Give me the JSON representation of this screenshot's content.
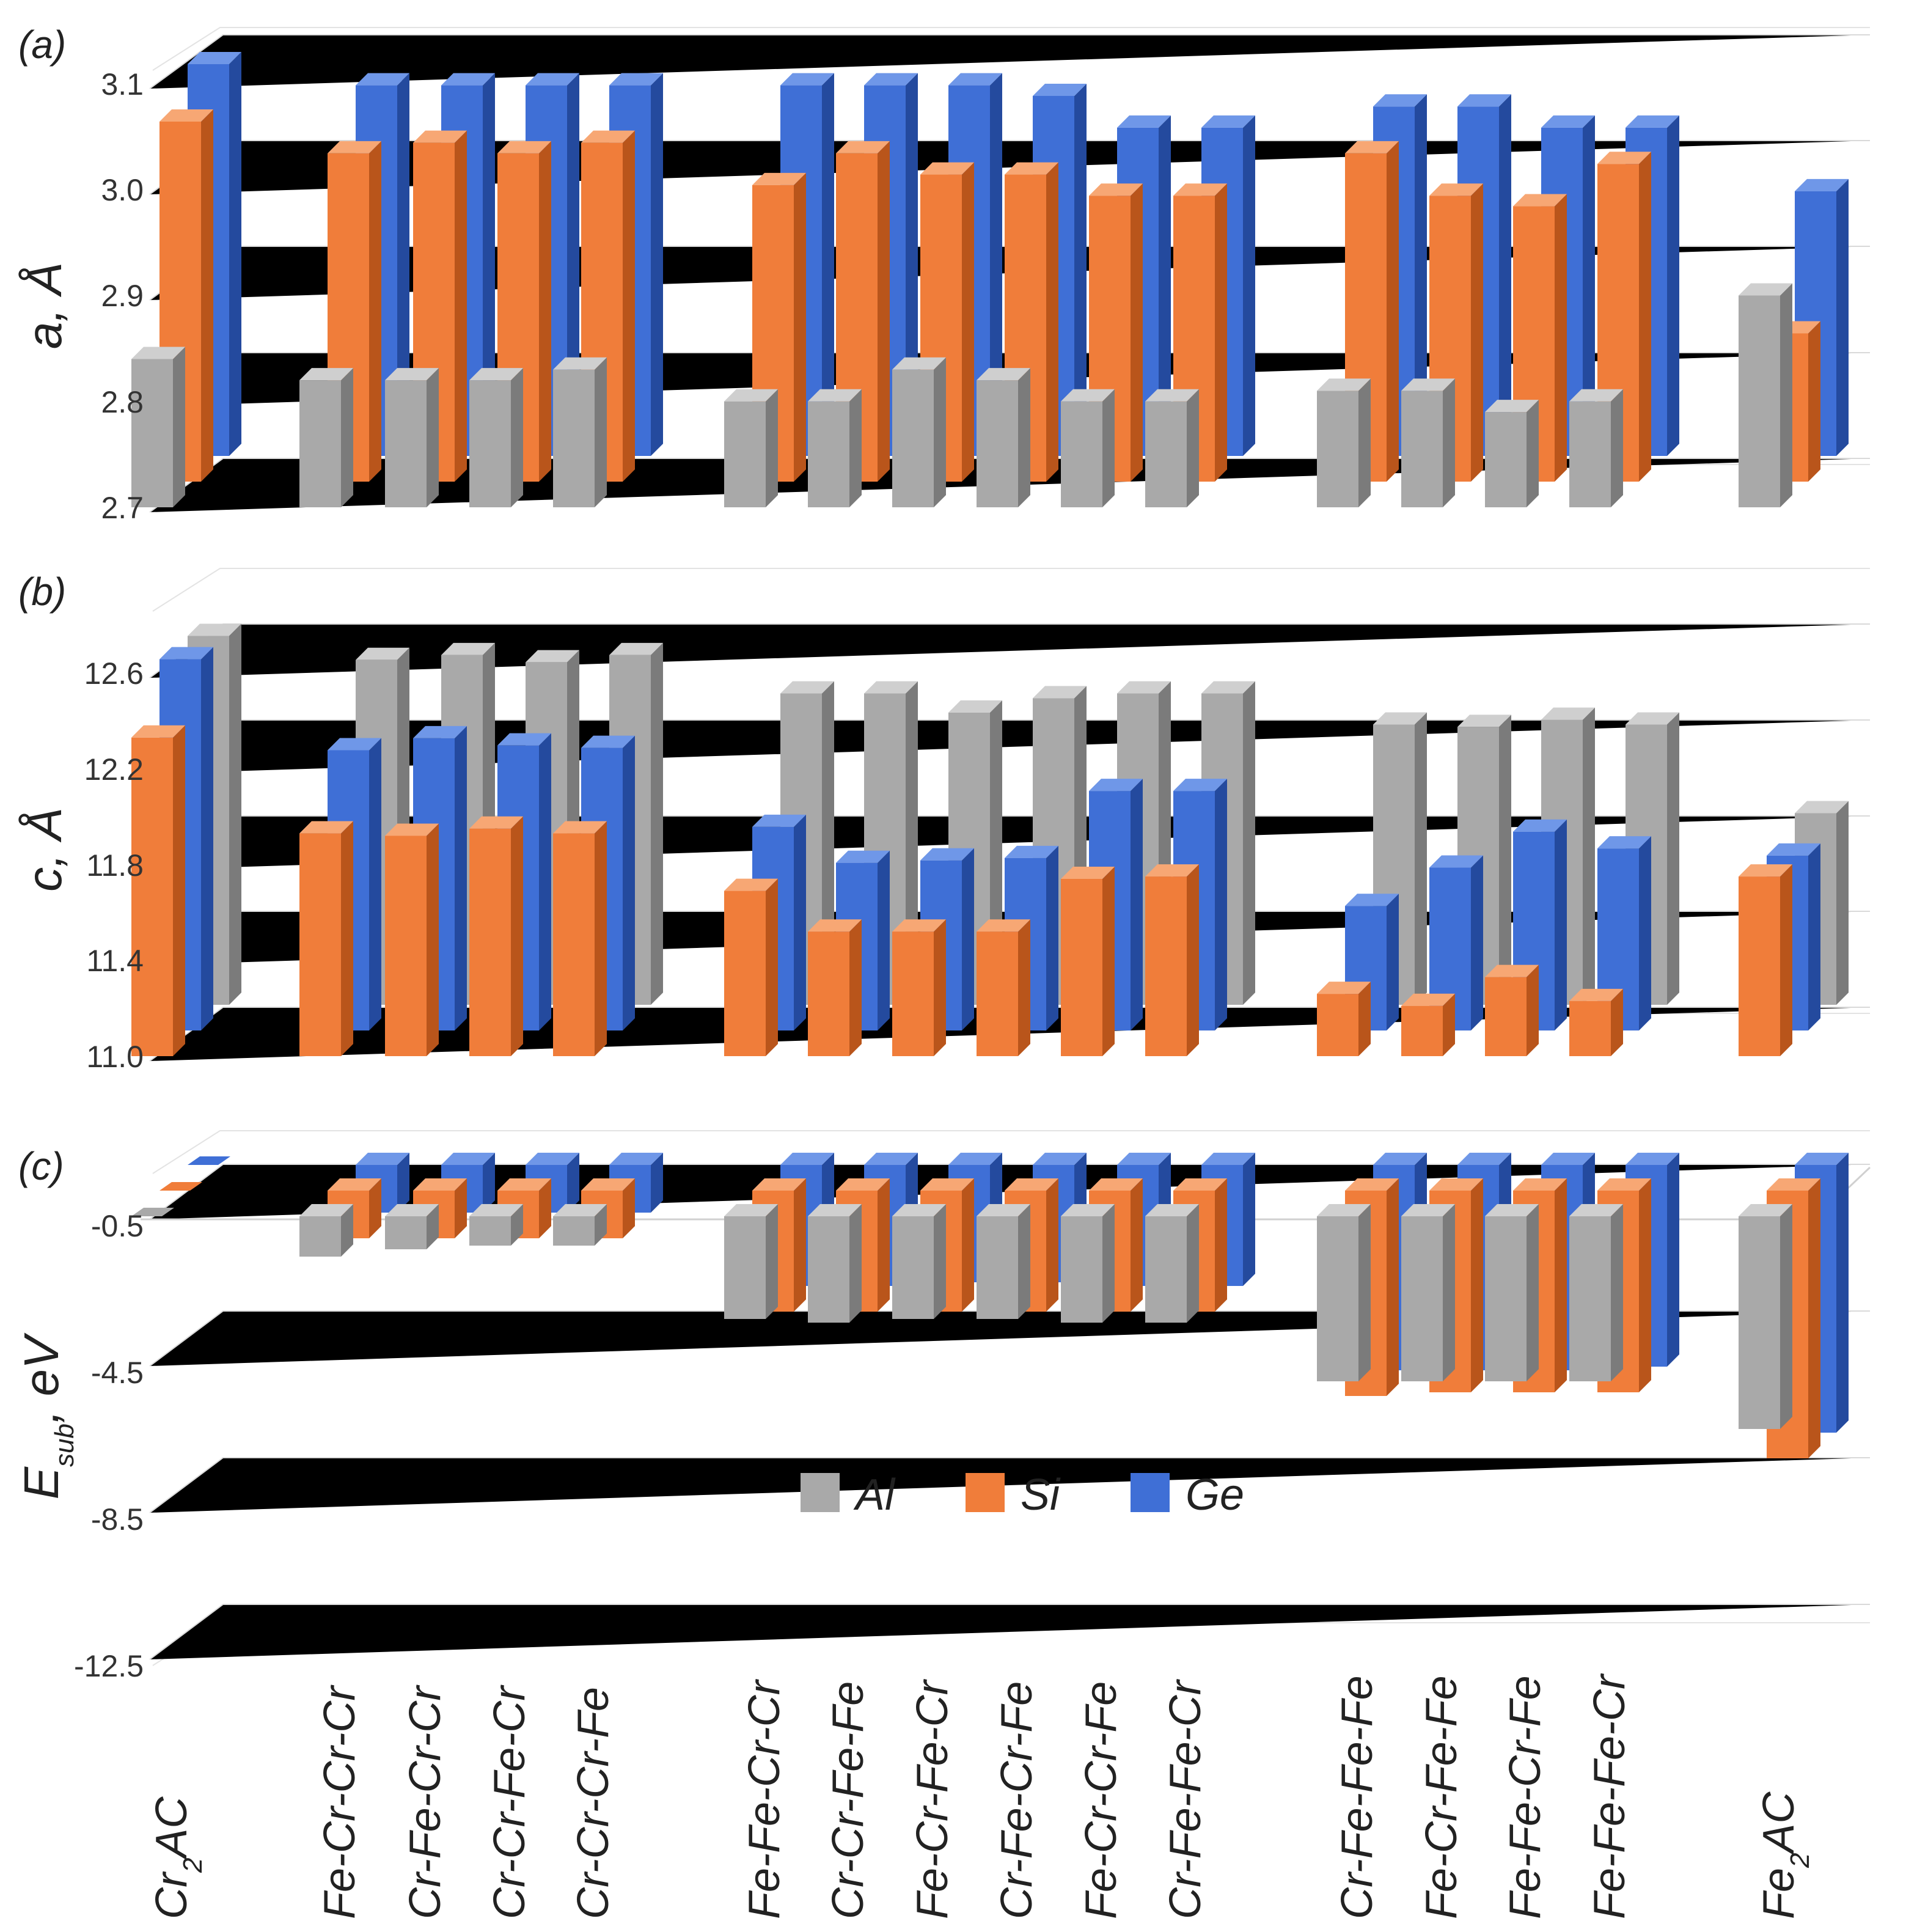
{
  "colors": {
    "Al": {
      "front": "#a9a9a9",
      "side": "#7b7b7b",
      "top": "#cfcfcf"
    },
    "Si": {
      "front": "#f07d3a",
      "side": "#b9551b",
      "top": "#f7a774"
    },
    "Ge": {
      "front": "#3f6fd6",
      "side": "#244a9e",
      "top": "#6f97e8"
    }
  },
  "chart_data": {
    "type": "bar",
    "subtype": "3d-clustered-column",
    "categories": [
      {
        "name": "Cr2AC",
        "label_main": "Cr",
        "label_sub": "2",
        "label_tail": "AC"
      },
      {
        "name": "Fe-Cr-Cr-Cr"
      },
      {
        "name": "Cr-Fe-Cr-Cr"
      },
      {
        "name": "Cr-Cr-Fe-Cr"
      },
      {
        "name": "Cr-Cr-Cr-Fe"
      },
      {
        "name": "Fe-Fe-Cr-Cr"
      },
      {
        "name": "Cr-Cr-Fe-Fe"
      },
      {
        "name": "Fe-Cr-Fe-Cr"
      },
      {
        "name": "Cr-Fe-Cr-Fe"
      },
      {
        "name": "Fe-Cr-Cr-Fe"
      },
      {
        "name": "Cr-Fe-Fe-Cr"
      },
      {
        "name": "Cr-Fe-Fe-Fe"
      },
      {
        "name": "Fe-Cr-Fe-Fe"
      },
      {
        "name": "Fe-Fe-Cr-Fe"
      },
      {
        "name": "Fe-Fe-Fe-Cr"
      },
      {
        "name": "Fe2AC",
        "label_main": "Fe",
        "label_sub": "2",
        "label_tail": "AC"
      }
    ],
    "legend": {
      "position": "inside-bottom-center",
      "entries": [
        "Al",
        "Si",
        "Ge"
      ]
    },
    "panels": [
      {
        "id": "a",
        "label": "(a)",
        "ylabel": "a, Å",
        "ylim": [
          2.7,
          3.1
        ],
        "yticks": [
          "2.7",
          "2.8",
          "2.9",
          "3.0",
          "3.1"
        ],
        "series_depth_order": [
          "Al",
          "Si",
          "Ge"
        ],
        "series": [
          {
            "name": "Al",
            "values": [
              2.84,
              2.82,
              2.82,
              2.82,
              2.83,
              2.8,
              2.8,
              2.83,
              2.82,
              2.8,
              2.8,
              2.81,
              2.81,
              2.79,
              2.8,
              2.9
            ]
          },
          {
            "name": "Si",
            "values": [
              3.04,
              3.01,
              3.02,
              3.01,
              3.02,
              2.98,
              3.01,
              2.99,
              2.99,
              2.97,
              2.97,
              3.01,
              2.97,
              2.96,
              3.0,
              2.84
            ]
          },
          {
            "name": "Ge",
            "values": [
              3.07,
              3.05,
              3.05,
              3.05,
              3.05,
              3.05,
              3.05,
              3.05,
              3.04,
              3.01,
              3.01,
              3.03,
              3.03,
              3.01,
              3.01,
              2.95
            ]
          }
        ]
      },
      {
        "id": "b",
        "label": "(b)",
        "ylabel": "c, Å",
        "ylim": [
          11.0,
          12.6
        ],
        "yticks": [
          "11.0",
          "11.4",
          "11.8",
          "12.2",
          "12.6"
        ],
        "series_depth_order": [
          "Si",
          "Ge",
          "Al"
        ],
        "series": [
          {
            "name": "Si",
            "values": [
              12.33,
              11.93,
              11.92,
              11.95,
              11.93,
              11.69,
              11.52,
              11.52,
              11.52,
              11.74,
              11.75,
              11.26,
              11.21,
              11.33,
              11.23,
              11.75
            ]
          },
          {
            "name": "Ge",
            "values": [
              12.55,
              12.17,
              12.22,
              12.19,
              12.18,
              11.85,
              11.7,
              11.71,
              11.72,
              12.0,
              12.0,
              11.52,
              11.68,
              11.83,
              11.76,
              11.73
            ]
          },
          {
            "name": "Al",
            "values": [
              12.54,
              12.44,
              12.46,
              12.43,
              12.46,
              12.3,
              12.3,
              12.22,
              12.28,
              12.3,
              12.3,
              12.17,
              12.16,
              12.19,
              12.17,
              11.8
            ]
          }
        ]
      },
      {
        "id": "c",
        "label": "(c)",
        "ylabel": "E",
        "ylabel_sub": "sub",
        "ylabel_tail": ", eV",
        "ylim": [
          -12.5,
          0.0
        ],
        "yticks": [
          "-0.5",
          "-4.5",
          "-8.5",
          "-12.5"
        ],
        "series_depth_order": [
          "Al",
          "Si",
          "Ge"
        ],
        "series": [
          {
            "name": "Al",
            "values": [
              0.0,
              -1.1,
              -0.9,
              -0.8,
              -0.8,
              -2.8,
              -2.9,
              -2.8,
              -2.8,
              -2.9,
              -2.9,
              -4.5,
              -4.5,
              -4.5,
              -4.5,
              -5.8
            ]
          },
          {
            "name": "Si",
            "values": [
              0.0,
              -1.3,
              -1.3,
              -1.3,
              -1.3,
              -3.3,
              -3.3,
              -3.3,
              -3.3,
              -3.3,
              -3.3,
              -5.6,
              -5.5,
              -5.5,
              -5.5,
              -7.3
            ]
          },
          {
            "name": "Ge",
            "values": [
              0.0,
              -1.3,
              -1.3,
              -1.3,
              -1.3,
              -3.3,
              -3.3,
              -3.2,
              -3.2,
              -3.3,
              -3.3,
              -5.6,
              -5.6,
              -5.6,
              -5.5,
              -7.3
            ]
          }
        ]
      }
    ]
  }
}
